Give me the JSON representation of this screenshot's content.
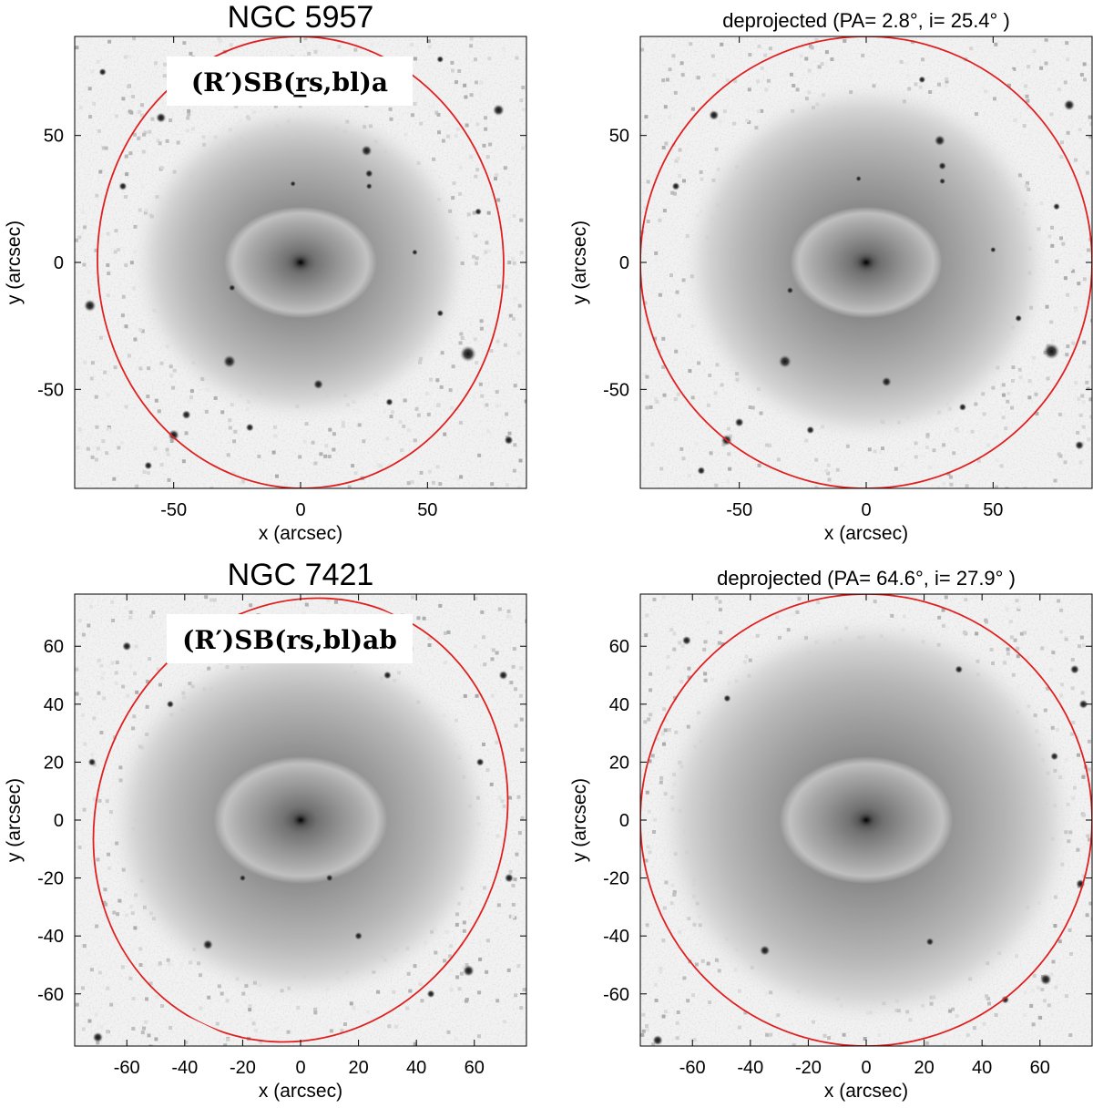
{
  "panels": [
    {
      "id": "ngc5957-observed",
      "title": "NGC 5957",
      "title_style": "large",
      "label": "(R′)SB(r̲s,bl)a",
      "xlabel": "x (arcsec)",
      "ylabel": "y (arcsec)",
      "xlim": [
        -89,
        89
      ],
      "ylim": [
        -89,
        89
      ],
      "xticks": [
        {
          "v": -50,
          "t": "-50"
        },
        {
          "v": 0,
          "t": "0"
        },
        {
          "v": 50,
          "t": "50"
        }
      ],
      "yticks": [
        {
          "v": -50,
          "t": "-50"
        },
        {
          "v": 0,
          "t": "0"
        },
        {
          "v": 50,
          "t": "50"
        }
      ],
      "ellipse": {
        "cx": 0,
        "cy": 0,
        "a": 80,
        "b": 89,
        "pa_deg": 2.8,
        "color": "#e02020"
      },
      "stars": [
        {
          "x": 26,
          "y": 44,
          "r": 2.2
        },
        {
          "x": 27,
          "y": 35,
          "r": 1.6
        },
        {
          "x": 27,
          "y": 30,
          "r": 1.3
        },
        {
          "x": -28,
          "y": -39,
          "r": 2.6
        },
        {
          "x": 7,
          "y": -48,
          "r": 2.0
        },
        {
          "x": 66,
          "y": -36,
          "r": 3.2
        },
        {
          "x": -83,
          "y": -17,
          "r": 2.4
        },
        {
          "x": -45,
          "y": -60,
          "r": 1.8
        },
        {
          "x": -50,
          "y": -68,
          "r": 2.2
        },
        {
          "x": -55,
          "y": 57,
          "r": 2.0
        },
        {
          "x": 78,
          "y": 60,
          "r": 2.3
        },
        {
          "x": -20,
          "y": -65,
          "r": 1.6
        },
        {
          "x": 45,
          "y": 4,
          "r": 1.2
        },
        {
          "x": -3,
          "y": 31,
          "r": 1.2
        },
        {
          "x": -27,
          "y": -10,
          "r": 1.4
        },
        {
          "x": 55,
          "y": -20,
          "r": 1.4
        },
        {
          "x": 35,
          "y": -55,
          "r": 1.5
        },
        {
          "x": -70,
          "y": 30,
          "r": 1.6
        },
        {
          "x": 70,
          "y": 20,
          "r": 1.4
        },
        {
          "x": 82,
          "y": -70,
          "r": 1.8
        },
        {
          "x": -78,
          "y": 75,
          "r": 1.5
        },
        {
          "x": 20,
          "y": 70,
          "r": 1.4
        },
        {
          "x": -60,
          "y": -80,
          "r": 1.6
        },
        {
          "x": 55,
          "y": 80,
          "r": 1.4
        }
      ],
      "seed": 11
    },
    {
      "id": "ngc5957-deprojected",
      "title": "deprojected  (PA= 2.8°, i= 25.4° )",
      "title_style": "small",
      "label": "",
      "xlabel": "x (arcsec)",
      "ylabel": "y (arcsec)",
      "xlim": [
        -89,
        89
      ],
      "ylim": [
        -89,
        89
      ],
      "xticks": [
        {
          "v": -50,
          "t": "-50"
        },
        {
          "v": 0,
          "t": "0"
        },
        {
          "v": 50,
          "t": "50"
        }
      ],
      "yticks": [
        {
          "v": -50,
          "t": "-50"
        },
        {
          "v": 0,
          "t": "0"
        },
        {
          "v": 50,
          "t": "50"
        }
      ],
      "ellipse": {
        "cx": 0,
        "cy": 0,
        "a": 89,
        "b": 89,
        "pa_deg": 0,
        "color": "#e02020"
      },
      "stars": [
        {
          "x": 29,
          "y": 48,
          "r": 2.2
        },
        {
          "x": 30,
          "y": 38,
          "r": 1.6
        },
        {
          "x": 30,
          "y": 32,
          "r": 1.3
        },
        {
          "x": -32,
          "y": -39,
          "r": 2.6
        },
        {
          "x": 8,
          "y": -47,
          "r": 2.0
        },
        {
          "x": 73,
          "y": -35,
          "r": 3.2
        },
        {
          "x": -50,
          "y": -63,
          "r": 1.8
        },
        {
          "x": -55,
          "y": -70,
          "r": 2.2
        },
        {
          "x": -60,
          "y": 58,
          "r": 2.0
        },
        {
          "x": 80,
          "y": 62,
          "r": 2.2
        },
        {
          "x": -22,
          "y": -66,
          "r": 1.6
        },
        {
          "x": 50,
          "y": 5,
          "r": 1.2
        },
        {
          "x": -3,
          "y": 33,
          "r": 1.2
        },
        {
          "x": -30,
          "y": -11,
          "r": 1.4
        },
        {
          "x": 60,
          "y": -22,
          "r": 1.4
        },
        {
          "x": 38,
          "y": -57,
          "r": 1.5
        },
        {
          "x": -75,
          "y": 30,
          "r": 1.6
        },
        {
          "x": 75,
          "y": 22,
          "r": 1.4
        },
        {
          "x": 84,
          "y": -72,
          "r": 1.8
        },
        {
          "x": 22,
          "y": 72,
          "r": 1.4
        },
        {
          "x": -65,
          "y": -82,
          "r": 1.6
        }
      ],
      "seed": 23
    },
    {
      "id": "ngc7421-observed",
      "title": "NGC 7421",
      "title_style": "large",
      "label": "(R′)SB(rs,bl)ab",
      "xlabel": "x (arcsec)",
      "ylabel": "y (arcsec)",
      "xlim": [
        -78,
        78
      ],
      "ylim": [
        -78,
        78
      ],
      "xticks": [
        {
          "v": -60,
          "t": "-60"
        },
        {
          "v": -40,
          "t": "-40"
        },
        {
          "v": -20,
          "t": "-20"
        },
        {
          "v": 0,
          "t": "0"
        },
        {
          "v": 20,
          "t": "20"
        },
        {
          "v": 40,
          "t": "40"
        },
        {
          "v": 60,
          "t": "60"
        }
      ],
      "yticks": [
        {
          "v": -60,
          "t": "-60"
        },
        {
          "v": -40,
          "t": "-40"
        },
        {
          "v": -20,
          "t": "-20"
        },
        {
          "v": 0,
          "t": "0"
        },
        {
          "v": 20,
          "t": "20"
        },
        {
          "v": 40,
          "t": "40"
        },
        {
          "v": 60,
          "t": "60"
        }
      ],
      "ellipse": {
        "cx": 0,
        "cy": 0,
        "a": 78,
        "b": 70,
        "pa_deg": 64.6,
        "color": "#e02020"
      },
      "stars": [
        {
          "x": -32,
          "y": -43,
          "r": 1.8
        },
        {
          "x": 58,
          "y": -52,
          "r": 2.0
        },
        {
          "x": -70,
          "y": -75,
          "r": 1.8
        },
        {
          "x": 70,
          "y": 50,
          "r": 1.6
        },
        {
          "x": -60,
          "y": 60,
          "r": 1.6
        },
        {
          "x": 20,
          "y": -40,
          "r": 1.4
        },
        {
          "x": 45,
          "y": -60,
          "r": 1.4
        },
        {
          "x": -45,
          "y": 40,
          "r": 1.3
        },
        {
          "x": 30,
          "y": 50,
          "r": 1.4
        },
        {
          "x": 62,
          "y": 20,
          "r": 1.4
        },
        {
          "x": -20,
          "y": -20,
          "r": 1.2
        },
        {
          "x": 10,
          "y": -20,
          "r": 1.3
        },
        {
          "x": 72,
          "y": -20,
          "r": 1.6
        },
        {
          "x": -72,
          "y": 20,
          "r": 1.4
        }
      ],
      "seed": 37
    },
    {
      "id": "ngc7421-deprojected",
      "title": "deprojected  (PA= 64.6°, i= 27.9° )",
      "title_style": "small",
      "label": "",
      "xlabel": "x (arcsec)",
      "ylabel": "y (arcsec)",
      "xlim": [
        -78,
        78
      ],
      "ylim": [
        -78,
        78
      ],
      "xticks": [
        {
          "v": -60,
          "t": "-60"
        },
        {
          "v": -40,
          "t": "-40"
        },
        {
          "v": -20,
          "t": "-20"
        },
        {
          "v": 0,
          "t": "0"
        },
        {
          "v": 20,
          "t": "20"
        },
        {
          "v": 40,
          "t": "40"
        },
        {
          "v": 60,
          "t": "60"
        }
      ],
      "yticks": [
        {
          "v": -60,
          "t": "-60"
        },
        {
          "v": -40,
          "t": "-40"
        },
        {
          "v": -20,
          "t": "-20"
        },
        {
          "v": 0,
          "t": "0"
        },
        {
          "v": 20,
          "t": "20"
        },
        {
          "v": 40,
          "t": "40"
        },
        {
          "v": 60,
          "t": "60"
        }
      ],
      "ellipse": {
        "cx": 0,
        "cy": 0,
        "a": 78,
        "b": 78,
        "pa_deg": 0,
        "color": "#e02020"
      },
      "stars": [
        {
          "x": -35,
          "y": -45,
          "r": 1.8
        },
        {
          "x": 62,
          "y": -55,
          "r": 2.0
        },
        {
          "x": -72,
          "y": -76,
          "r": 1.8
        },
        {
          "x": 72,
          "y": 52,
          "r": 1.6
        },
        {
          "x": -62,
          "y": 62,
          "r": 1.6
        },
        {
          "x": 22,
          "y": -42,
          "r": 1.4
        },
        {
          "x": 48,
          "y": -62,
          "r": 1.4
        },
        {
          "x": -48,
          "y": 42,
          "r": 1.3
        },
        {
          "x": 32,
          "y": 52,
          "r": 1.4
        },
        {
          "x": 65,
          "y": 22,
          "r": 1.4
        },
        {
          "x": 74,
          "y": -22,
          "r": 1.6
        },
        {
          "x": 75,
          "y": 40,
          "r": 1.6
        }
      ],
      "seed": 53
    }
  ]
}
